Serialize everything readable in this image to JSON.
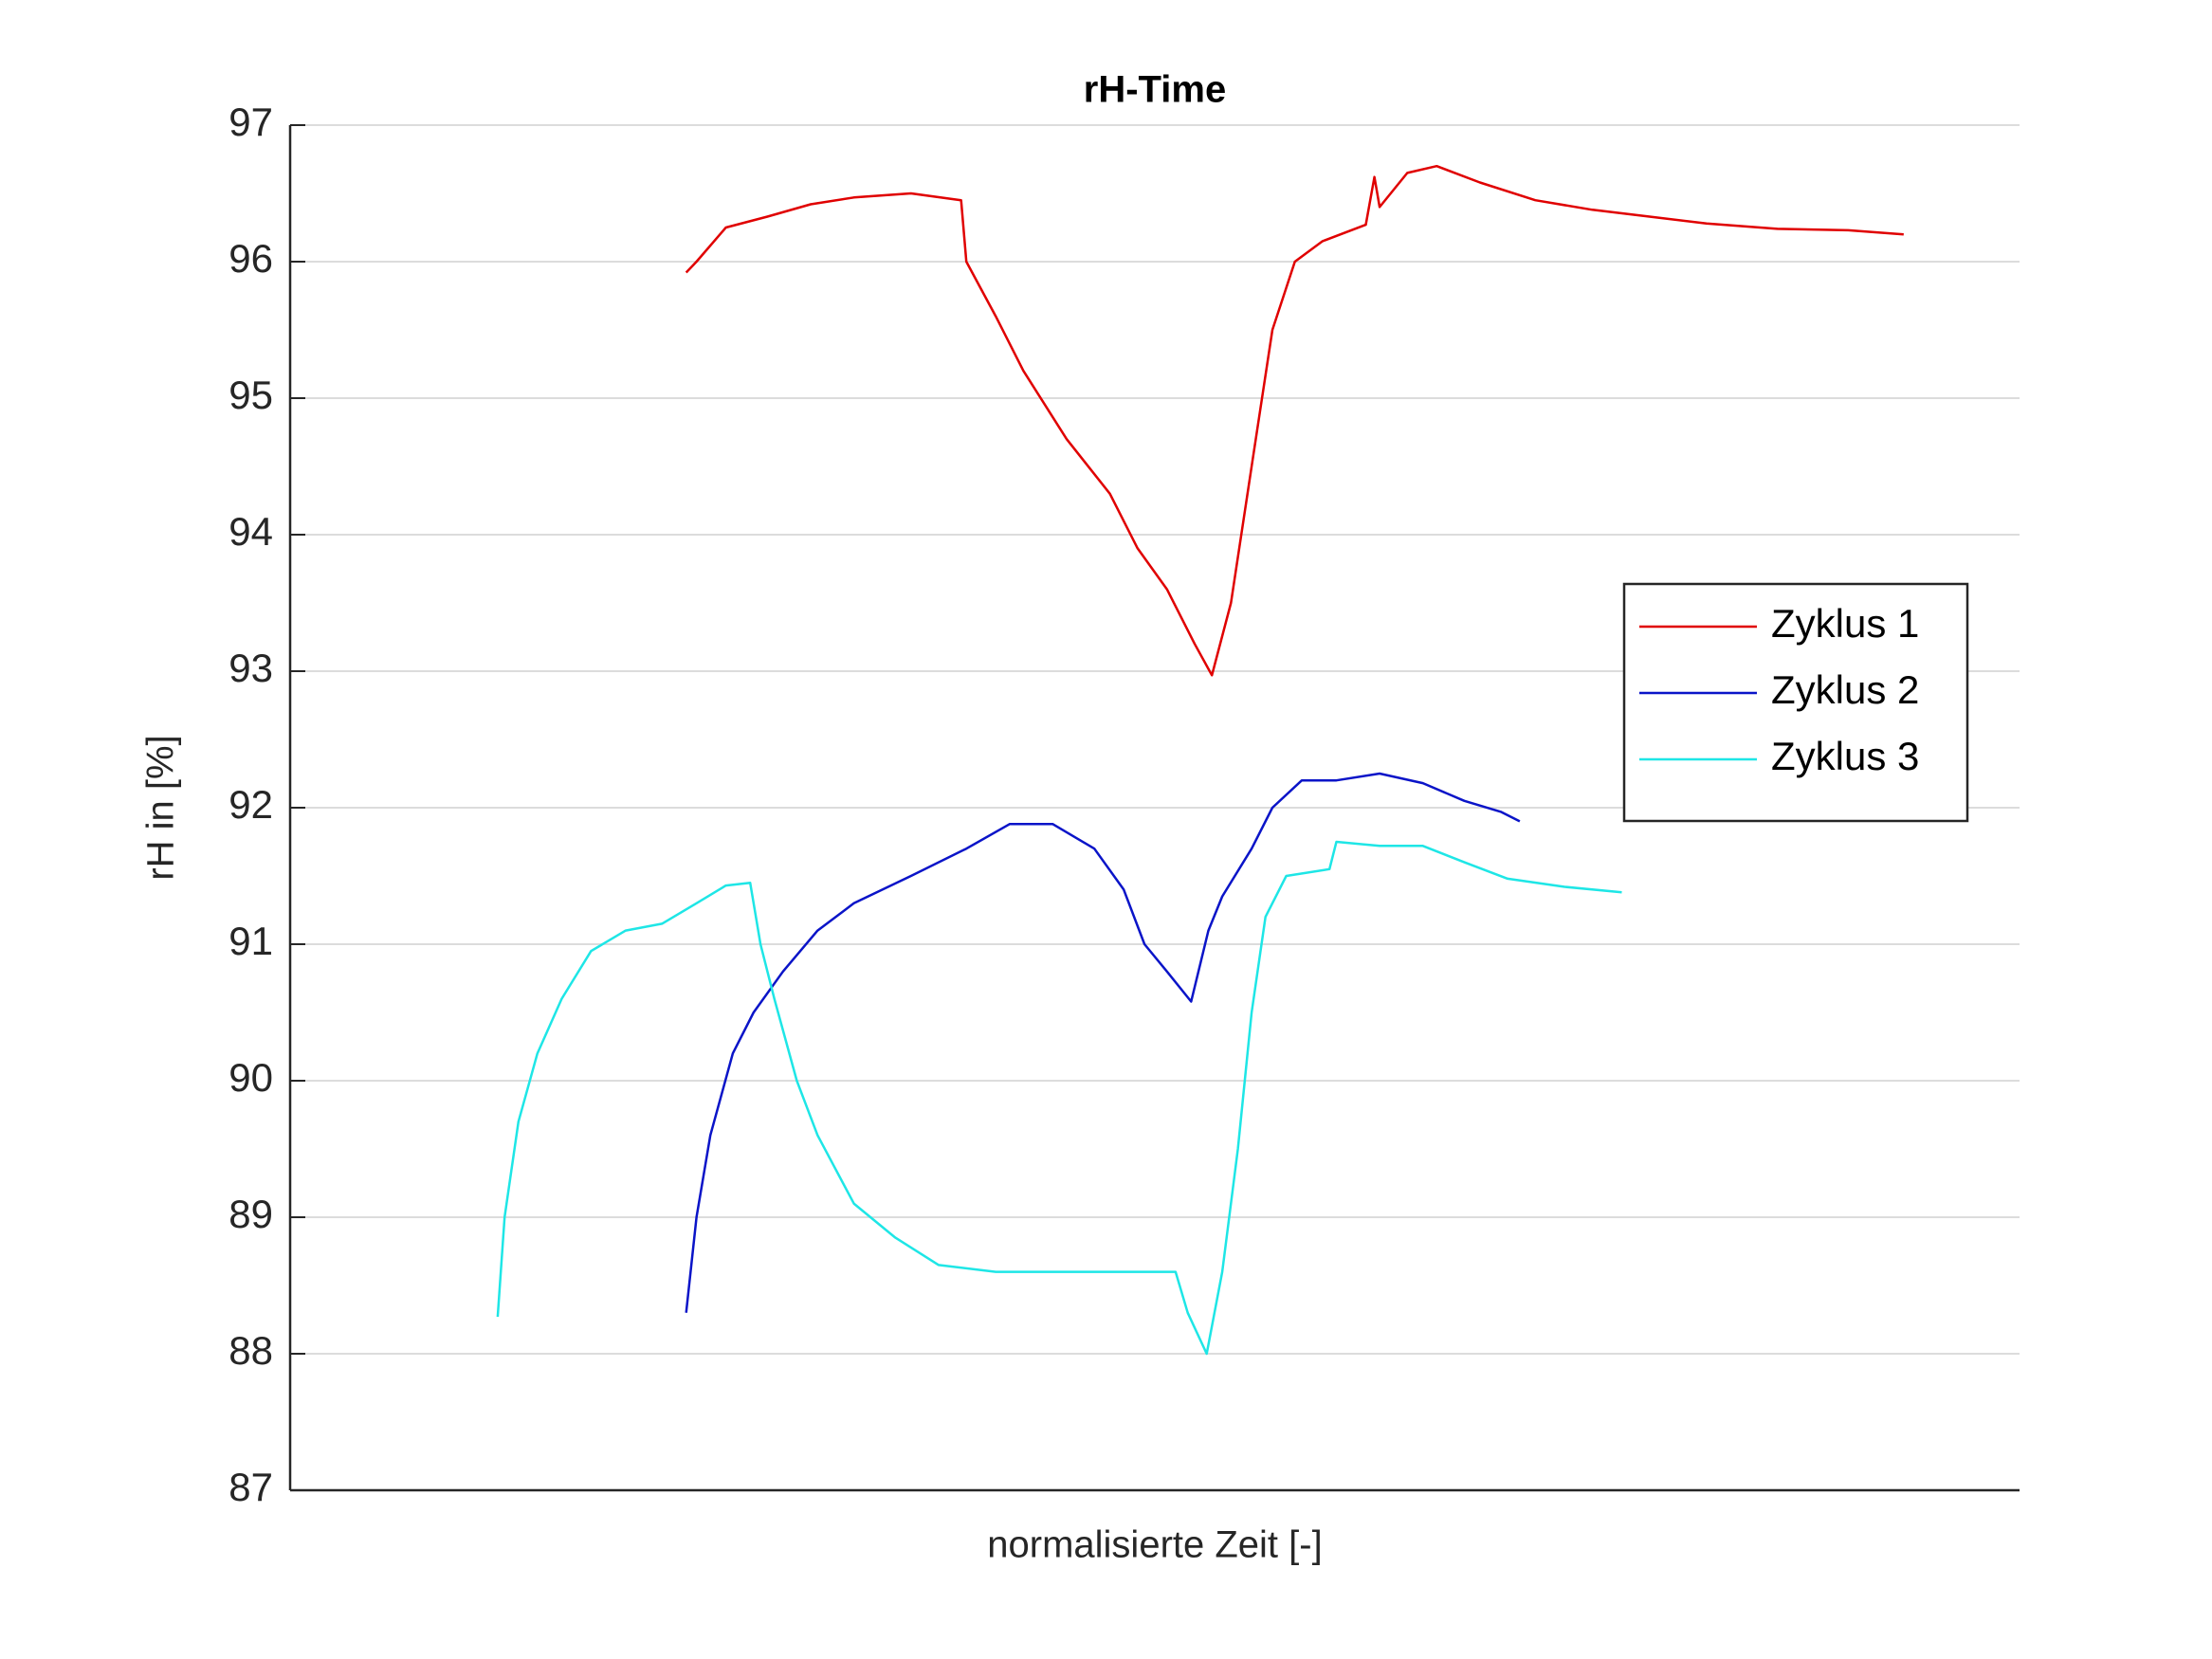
{
  "chart_data": {
    "type": "line",
    "title": "rH-Time",
    "x_label": "normalisierte Zeit [-]",
    "y_label": "rH in [%]",
    "xlim": [
      0,
      1
    ],
    "ylim": [
      87,
      97
    ],
    "yticks": [
      87,
      88,
      89,
      90,
      91,
      92,
      93,
      94,
      95,
      96,
      97
    ],
    "grid": true,
    "legend": "east",
    "series": [
      {
        "name": "Zyklus 1",
        "color": "#e00000",
        "x": [
          0.229,
          0.235,
          0.252,
          0.276,
          0.301,
          0.326,
          0.359,
          0.388,
          0.391,
          0.408,
          0.424,
          0.449,
          0.474,
          0.49,
          0.507,
          0.523,
          0.533,
          0.544,
          0.556,
          0.568,
          0.581,
          0.597,
          0.622,
          0.627,
          0.63,
          0.646,
          0.663,
          0.688,
          0.72,
          0.753,
          0.786,
          0.819,
          0.86,
          0.901,
          0.933
        ],
        "values": [
          95.92,
          96.0,
          96.25,
          96.33,
          96.42,
          96.47,
          96.5,
          96.45,
          96.0,
          95.6,
          95.2,
          94.7,
          94.3,
          93.9,
          93.6,
          93.2,
          92.97,
          93.5,
          94.5,
          95.5,
          96.0,
          96.15,
          96.27,
          96.62,
          96.4,
          96.65,
          96.7,
          96.58,
          96.45,
          96.38,
          96.33,
          96.28,
          96.24,
          96.23,
          96.2
        ]
      },
      {
        "name": "Zyklus 2",
        "color": "#0a14c8",
        "x": [
          0.229,
          0.235,
          0.243,
          0.256,
          0.268,
          0.285,
          0.305,
          0.326,
          0.359,
          0.391,
          0.416,
          0.441,
          0.465,
          0.482,
          0.494,
          0.507,
          0.521,
          0.531,
          0.539,
          0.556,
          0.568,
          0.585,
          0.605,
          0.63,
          0.655,
          0.679,
          0.7,
          0.711
        ],
        "values": [
          88.3,
          89.0,
          89.6,
          90.2,
          90.5,
          90.8,
          91.1,
          91.3,
          91.5,
          91.7,
          91.88,
          91.88,
          91.7,
          91.4,
          91.0,
          90.8,
          90.58,
          91.1,
          91.35,
          91.7,
          92.0,
          92.2,
          92.2,
          92.25,
          92.18,
          92.05,
          91.97,
          91.9
        ]
      },
      {
        "name": "Zyklus 3",
        "color": "#1ee6e6",
        "x": [
          0.12,
          0.124,
          0.132,
          0.143,
          0.157,
          0.174,
          0.194,
          0.215,
          0.235,
          0.252,
          0.266,
          0.272,
          0.28,
          0.293,
          0.305,
          0.326,
          0.35,
          0.375,
          0.408,
          0.449,
          0.482,
          0.512,
          0.519,
          0.53,
          0.539,
          0.548,
          0.556,
          0.564,
          0.576,
          0.601,
          0.605,
          0.63,
          0.655,
          0.679,
          0.704,
          0.737,
          0.77
        ],
        "values": [
          88.27,
          89.0,
          89.7,
          90.2,
          90.6,
          90.95,
          91.1,
          91.15,
          91.3,
          91.43,
          91.45,
          91.0,
          90.6,
          90.0,
          89.6,
          89.1,
          88.85,
          88.65,
          88.6,
          88.6,
          88.6,
          88.6,
          88.3,
          88.0,
          88.6,
          89.5,
          90.5,
          91.2,
          91.5,
          91.55,
          91.75,
          91.72,
          91.72,
          91.6,
          91.48,
          91.42,
          91.38
        ]
      }
    ]
  }
}
